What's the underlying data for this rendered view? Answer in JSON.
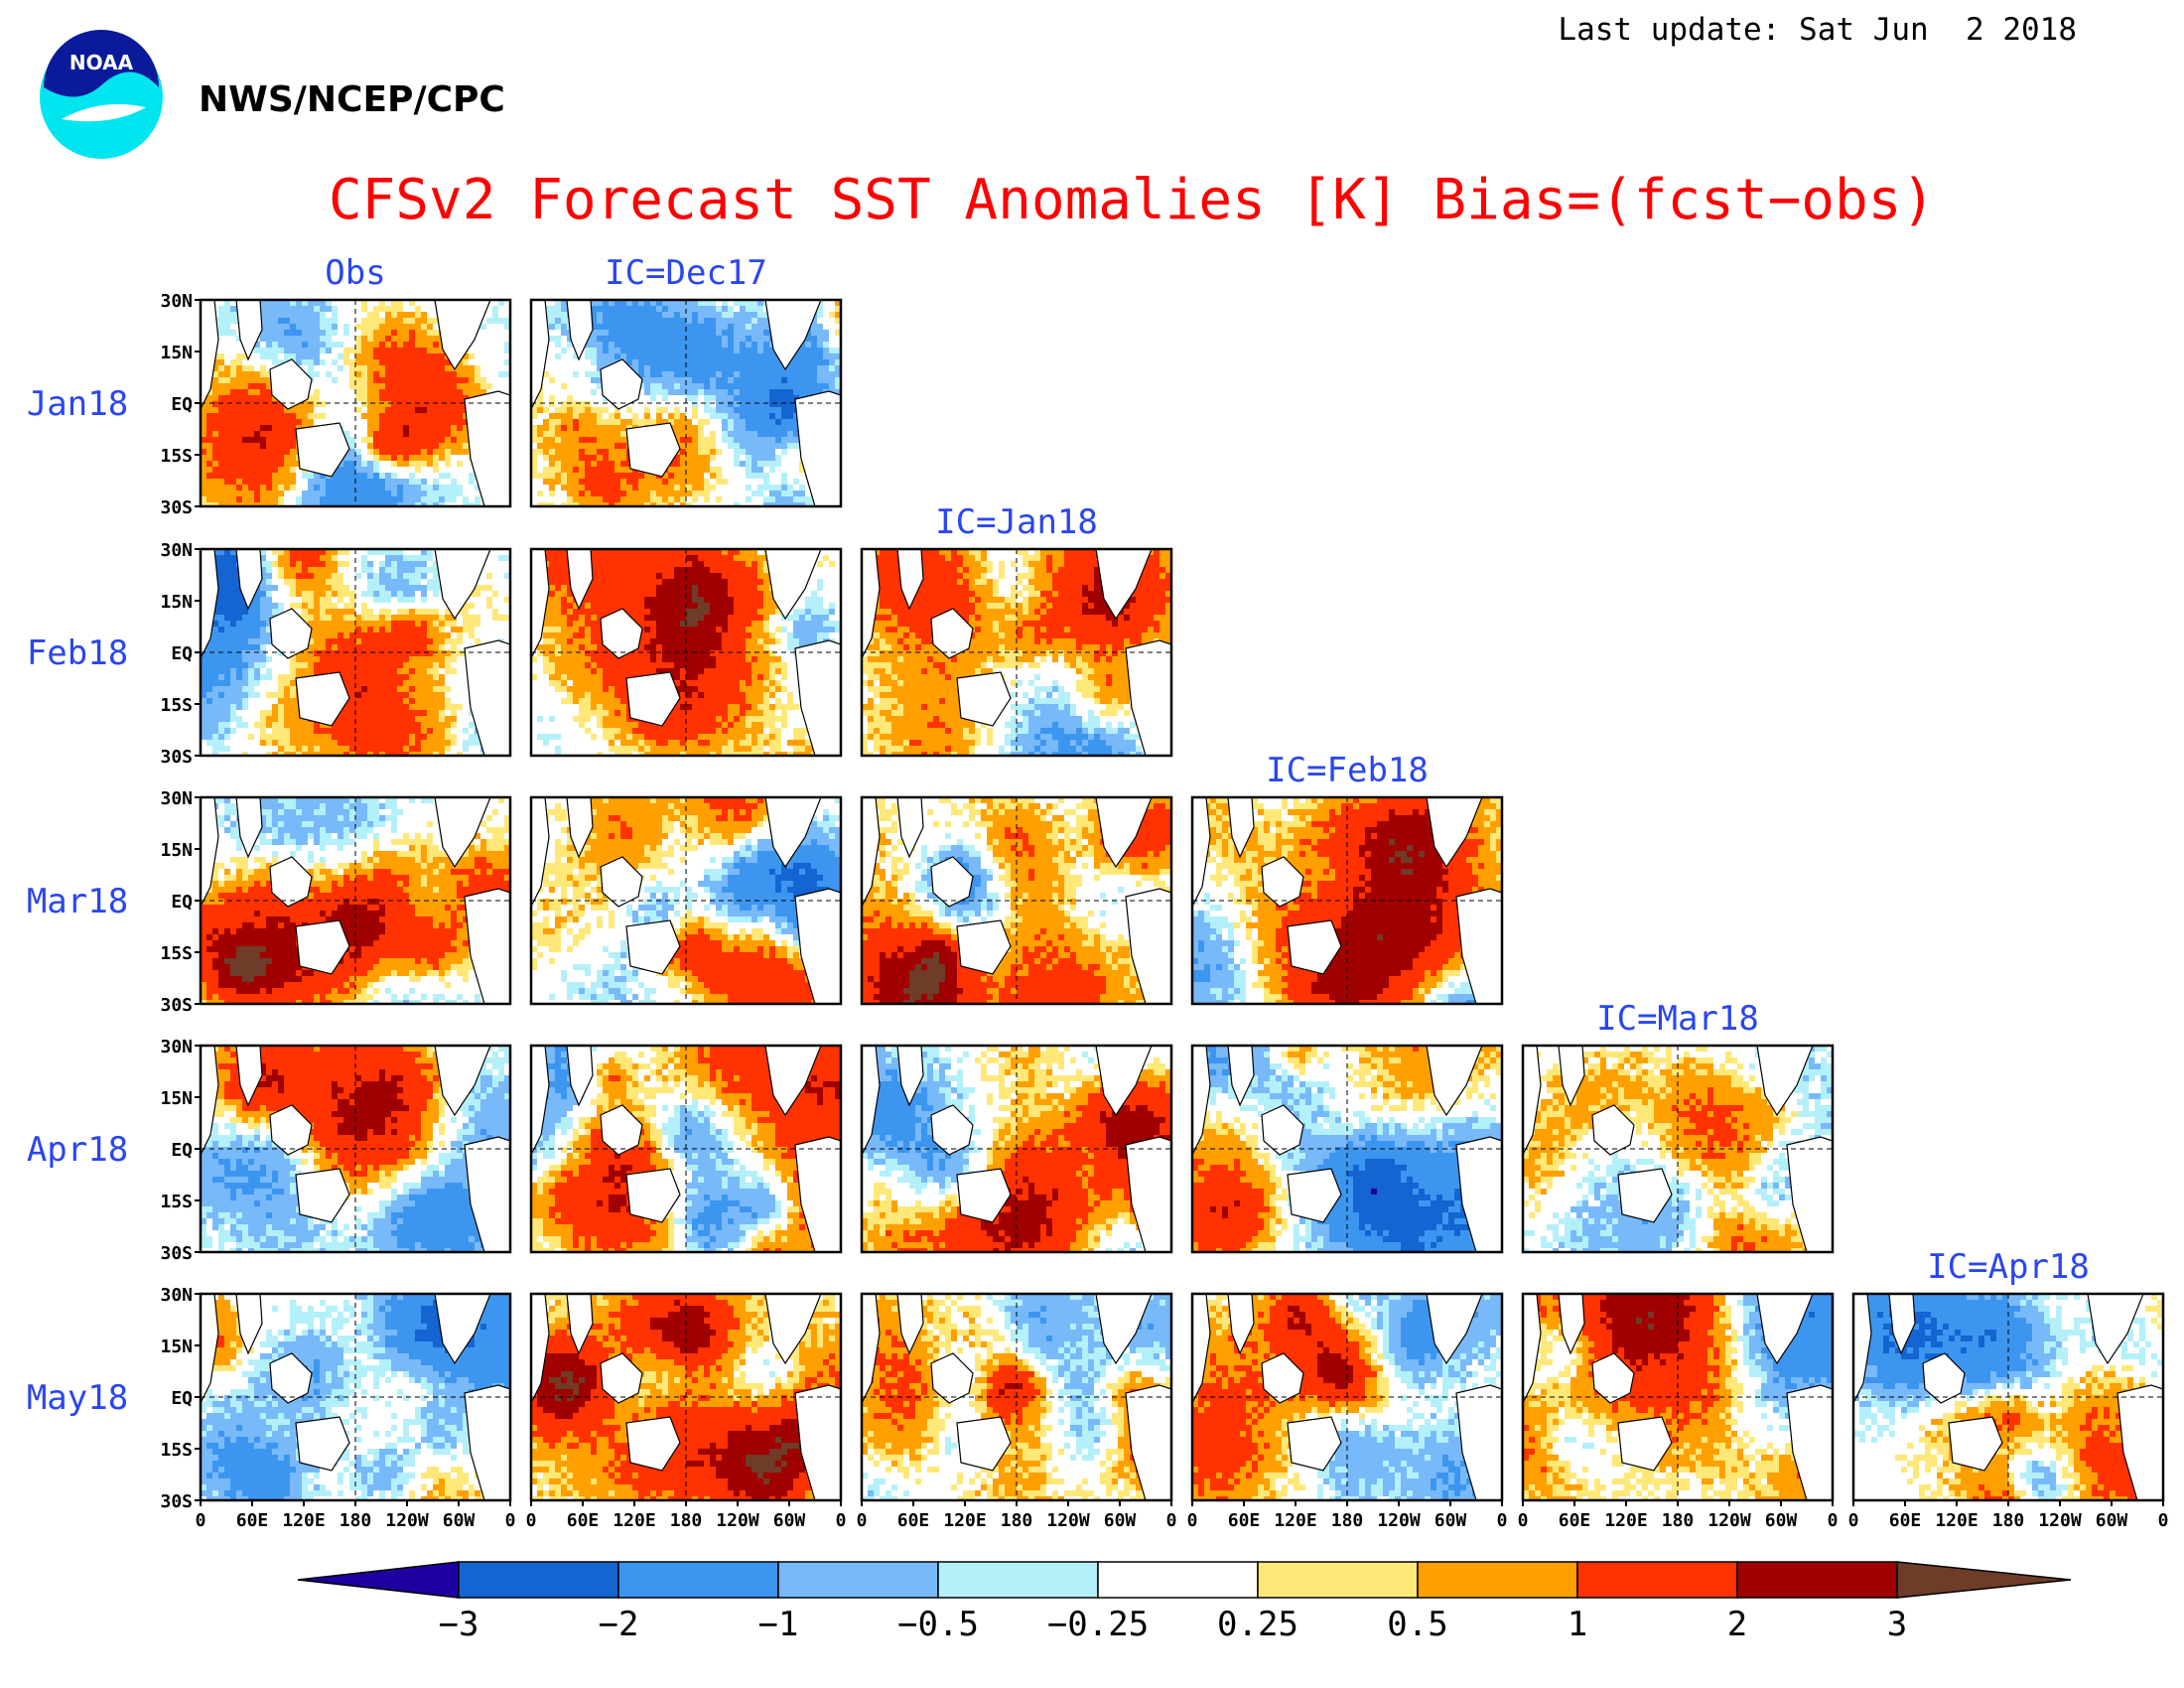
{
  "header": {
    "last_update": "Last update: Sat Jun  2 2018",
    "agency": "NWS/NCEP/CPC",
    "logo_text": "NOAA",
    "title": "CFSv2 Forecast SST Anomalies [K] Bias=(fcst−obs)"
  },
  "chart_data": {
    "type": "heatmap",
    "rows": [
      "Jan18",
      "Feb18",
      "Mar18",
      "Apr18",
      "May18"
    ],
    "columns": [
      "Obs",
      "IC=Dec17",
      "IC=Jan18",
      "IC=Feb18",
      "IC=Mar18",
      "IC=Apr18"
    ],
    "x_ticks": [
      "0",
      "60E",
      "120E",
      "180",
      "120W",
      "60W",
      "0"
    ],
    "y_ticks": [
      "30N",
      "15N",
      "EQ",
      "15S",
      "30S"
    ],
    "colorbar": {
      "labels": [
        "−3",
        "−2",
        "−1",
        "−0.5",
        "−0.25",
        "0.25",
        "0.5",
        "1",
        "2",
        "3"
      ],
      "colors": [
        "#1e00a0",
        "#1464d2",
        "#3c96f0",
        "#78b9fa",
        "#b4f0fa",
        "#ffffff",
        "#ffe878",
        "#ffa000",
        "#ff3200",
        "#a00000",
        "#6e3c28"
      ]
    }
  },
  "colors": {
    "title": "#ff0000",
    "labels": "#2a46f0",
    "text": "#000000"
  }
}
